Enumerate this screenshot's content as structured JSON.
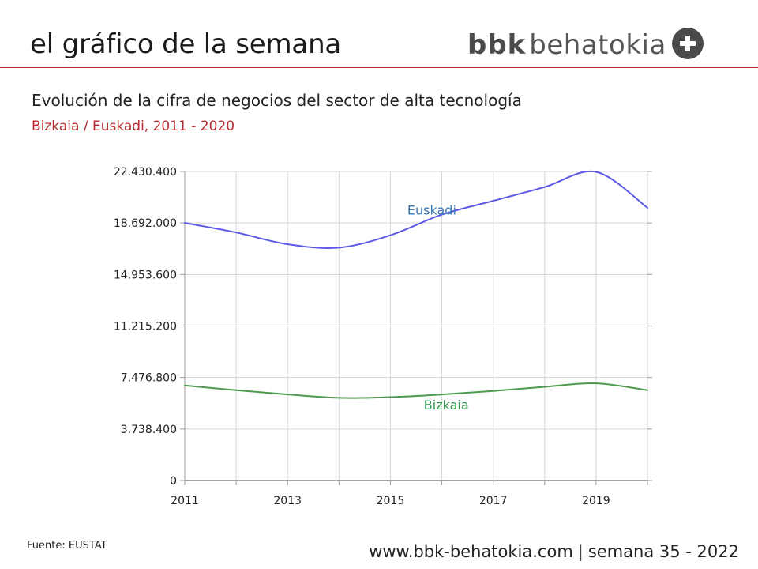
{
  "header": {
    "title": "el gráfico de la semana",
    "brand_bold": "bbk",
    "brand_light": "behatokia",
    "colors": {
      "rule": "#b7343a",
      "brand_badge": "#4a4a4a"
    }
  },
  "chart_data": {
    "type": "line",
    "title": "Evolución de la cifra de negocios del sector de alta tecnología",
    "subtitle": "Bizkaia / Euskadi, 2011 - 2020",
    "x": [
      2011,
      2012,
      2013,
      2014,
      2015,
      2016,
      2017,
      2018,
      2019,
      2020
    ],
    "x_ticks": [
      "2011",
      "2013",
      "2015",
      "2017",
      "2019"
    ],
    "y_ticks": [
      "0",
      "3.738.400",
      "7.476.800",
      "11.215.200",
      "14.953.600",
      "18.692.000",
      "22.430.400"
    ],
    "ylim": [
      0,
      22430400
    ],
    "xlim": [
      2011,
      2020
    ],
    "grid": true,
    "series": [
      {
        "name": "Euskadi",
        "color": "#5b5be6",
        "label_color": "#3a78b5",
        "values": [
          18700000,
          18000000,
          17150000,
          16900000,
          17800000,
          19300000,
          20300000,
          21300000,
          22400000,
          19800000
        ]
      },
      {
        "name": "Bizkaia",
        "color": "#4e9a4e",
        "label_color": "#2e9a4e",
        "values": [
          6900000,
          6550000,
          6250000,
          6000000,
          6050000,
          6250000,
          6500000,
          6800000,
          7050000,
          6550000
        ]
      }
    ]
  },
  "footer": {
    "source": "Fuente: EUSTAT",
    "url": "www.bbk-behatokia.com",
    "separator": "|",
    "week": "semana 35 - 2022"
  }
}
